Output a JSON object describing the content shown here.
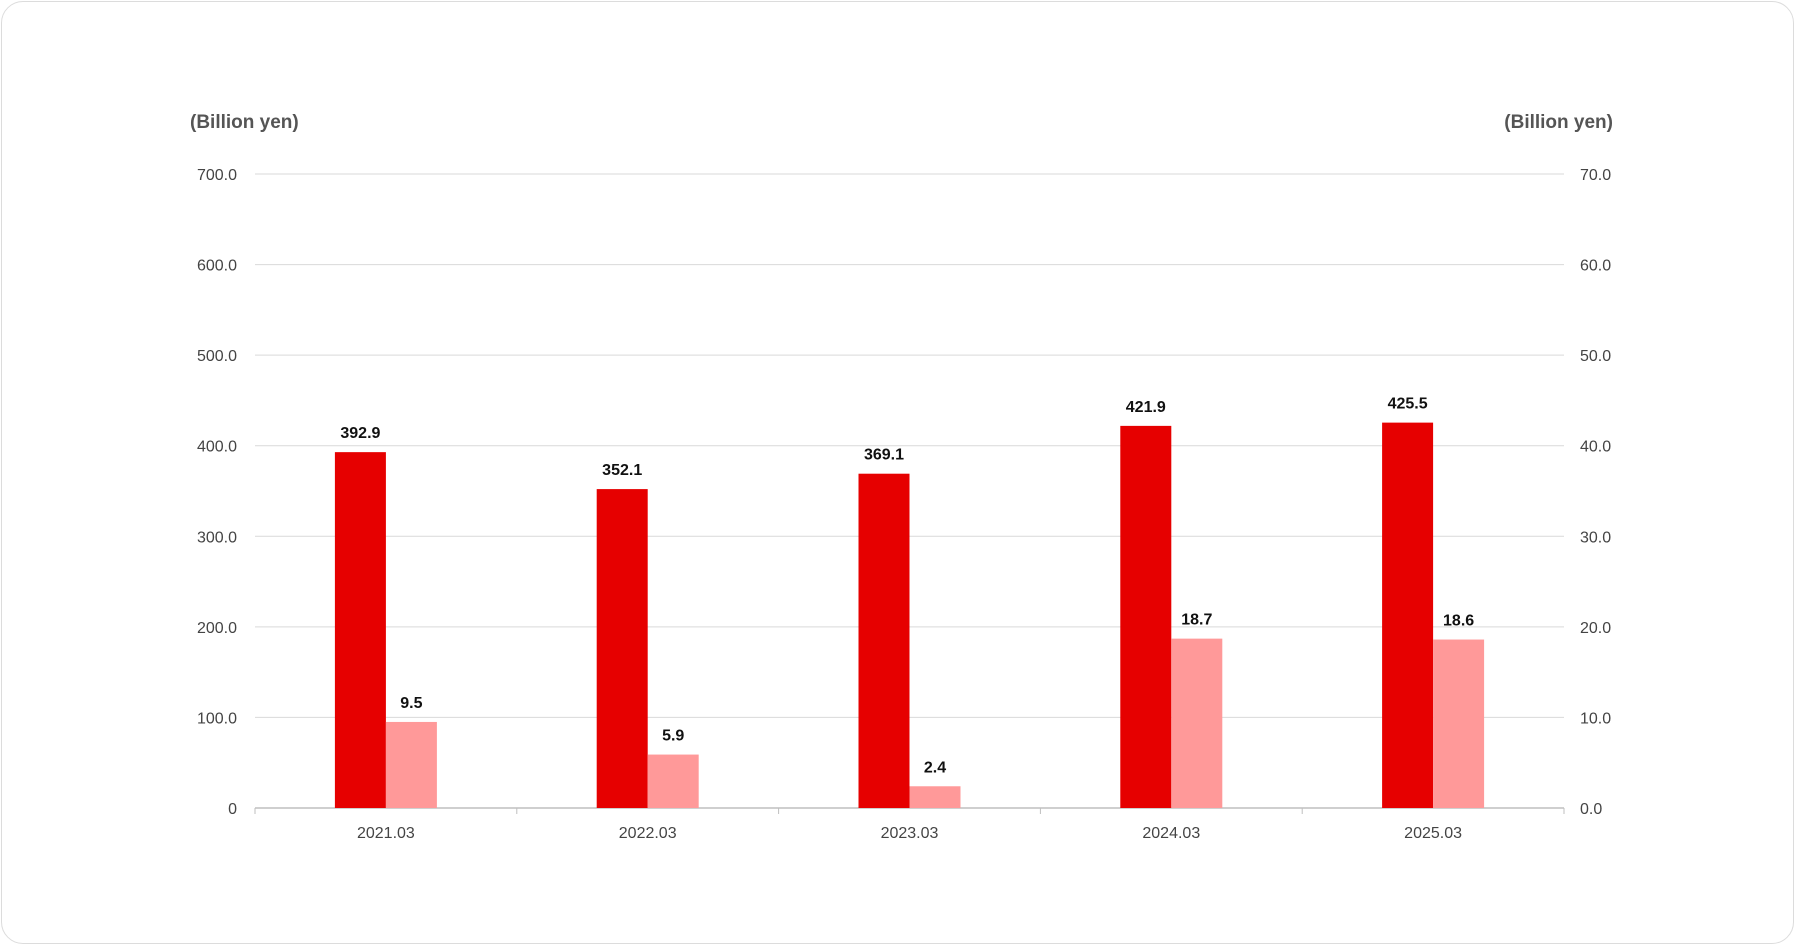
{
  "chart_data": {
    "type": "bar",
    "categories": [
      "2021.03",
      "2022.03",
      "2023.03",
      "2024.03",
      "2025.03"
    ],
    "series": [
      {
        "axis": "left",
        "color": "#e60000",
        "values": [
          392.9,
          352.1,
          369.1,
          421.9,
          425.5
        ],
        "labels": [
          "392.9",
          "352.1",
          "369.1",
          "421.9",
          "425.5"
        ]
      },
      {
        "axis": "right",
        "color": "#ff9999",
        "values": [
          9.5,
          5.9,
          2.4,
          18.7,
          18.6
        ],
        "labels": [
          "9.5",
          "5.9",
          "2.4",
          "18.7",
          "18.6"
        ]
      }
    ],
    "left_axis": {
      "unit_label": "(Billion yen)",
      "ylim": [
        0,
        700
      ],
      "ticks": [
        "0",
        "100.0",
        "200.0",
        "300.0",
        "400.0",
        "500.0",
        "600.0",
        "700.0"
      ]
    },
    "right_axis": {
      "unit_label": "(Billion yen)",
      "ylim": [
        0,
        70
      ],
      "ticks": [
        "0.0",
        "10.0",
        "20.0",
        "30.0",
        "40.0",
        "50.0",
        "60.0",
        "70.0"
      ]
    },
    "grid": true,
    "legend": "none"
  }
}
